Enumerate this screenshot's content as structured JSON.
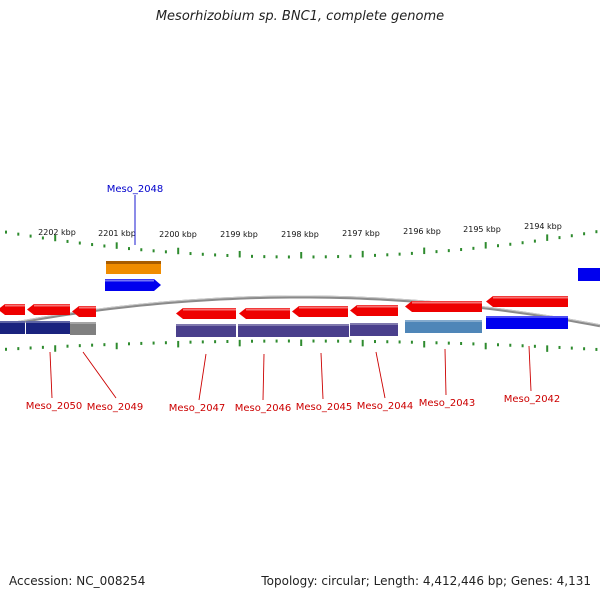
{
  "title": "Mesorhizobium sp. BNC1, complete genome",
  "accession_text": "Accession: NC_008254",
  "summary_text": "Topology: circular; Length: 4,412,446 bp; Genes: 4,131",
  "colors": {
    "backbone": "#8a8a8a",
    "tick": "#2e8b2e",
    "forward_gene": "#0000ee",
    "reverse_gene": "#ee0000",
    "orange_feature": "#f08c00",
    "purple_track": "#4a3f8c",
    "steel_track": "#4f86b8",
    "navy_track": "#1a237e",
    "grey_track": "#808080",
    "forward_label": "#0000cc",
    "reverse_label": "#cc0000"
  },
  "scale": {
    "ticks": [
      {
        "label": "2202 kbp",
        "kbp": 2202
      },
      {
        "label": "2201 kbp",
        "kbp": 2201
      },
      {
        "label": "2200 kbp",
        "kbp": 2200
      },
      {
        "label": "2199 kbp",
        "kbp": 2199
      },
      {
        "label": "2198 kbp",
        "kbp": 2198
      },
      {
        "label": "2197 kbp",
        "kbp": 2197
      },
      {
        "label": "2196 kbp",
        "kbp": 2196
      },
      {
        "label": "2195 kbp",
        "kbp": 2195
      },
      {
        "label": "2194 kbp",
        "kbp": 2194
      }
    ]
  },
  "genes": [
    {
      "label": "Meso_2048",
      "strand": "forward"
    },
    {
      "label": "Meso_2050",
      "strand": "reverse"
    },
    {
      "label": "Meso_2049",
      "strand": "reverse"
    },
    {
      "label": "Meso_2047",
      "strand": "reverse"
    },
    {
      "label": "Meso_2046",
      "strand": "reverse"
    },
    {
      "label": "Meso_2045",
      "strand": "reverse"
    },
    {
      "label": "Meso_2044",
      "strand": "reverse"
    },
    {
      "label": "Meso_2043",
      "strand": "reverse"
    },
    {
      "label": "Meso_2042",
      "strand": "reverse"
    }
  ]
}
